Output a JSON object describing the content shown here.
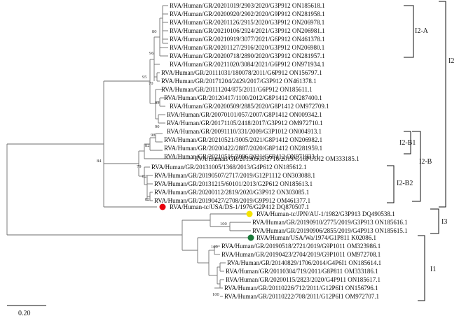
{
  "tree": {
    "taxa": [
      "RVA/Human/GR/20201019/2903/2020/G3P912 ON185618.1",
      "RVA/Human/GR/20200920/2902/2020/G9P912 ON281958.1",
      "RVA/Human/GR/20201126/2915/2020/G3P912 ON206978.1",
      "RVA/Human/GR/20210106/2924/2021/G3P912 ON206981.1",
      "RVA/Human/GR/20210919/3077/2021/G6P912 ON461378.1",
      "RVA/Human/GR/20201127/2916/2020/G3P912 ON206980.1",
      "RVA/Human/GR/20200718/2890/2020/G3P912 ON281957.1",
      "RVA/Human/GR/20211020/3084/2021/G6P912 ON971934.1",
      "RVA/Human/GR/20111031/180078/2011/G6P912 ON156797.1",
      "RVA/Human/GR/20171204/2429/2017/G3P912 ON461378.1",
      "RVA/Human/GR/20111204/875/2011/G6P912 ON185611.1",
      "RVA/Human/GR/20120417/1100/2012/G8P1412 ON287400.1",
      "RVA/Human/GR/20200509/2885/2020/G8P1412 OM972709.1",
      "RVA/Human/GR/20070101/057/2007/G8P1412 ON009342.1",
      "RVA/Human/GR/20171105/2418/2017/G3P912 OM972710.1",
      "RVA/Human/GR/20091110/331/2009/G3P1012 ON004913.1",
      "RVA/Human/GR/20210521/3005/2021/G8P1412 ON206982.1",
      "RVA/Human/GR/20200422/2887/2020/G8P1412 ON281959.1",
      "RVA/Human/GR/20210516/3096/2021/G6P412 ON971933.1",
      "RVA/Human/GR/20190505/2716/2019/G10PUDI2 OM333185.1",
      "RVA/Human/GR/20131005/1368/2013/G4P612 ON185612.1",
      "RVA/Human/GR/20190507/2717/2019/G12P1112 ON303088.1",
      "RVA/Human/GR/20131215/60101/2013/G2P612 ON185613.1",
      "RVA/Human/GR/20200112/2819/2020/G3P912 ON303085.1",
      "RVA/Human/GR/20190427/2708/2019/G9P912 OM461377.1",
      "RVA/Human-tc/USA/DS-1/1976/G2P412 DQ870507.1",
      "RVA/Human-tc/JPN/AU-1/1982/G3P913 DQ490538.1",
      "RVA/Human/GR/20190910/2775/2019/G3P913 ON185616.1",
      "RVA/Human/GR/20190906/2855/2019/G4P913 ON185615.1",
      "RVA/Human/USA/Wa/1974/G1P811 K02086.1",
      "RVA/Human/GR/20190518/2721/2019/G9P1011 OM323986.1",
      "RVA/Human/GR/20190423/2704/2019/G9P1011 OM972708.1",
      "RVA/Human/GR/20140829/1706/2014/G4P6I1 ON185614.1",
      "RVA/Human/GR/20110304/719/2011/G8P811 OM333186.1",
      "RVA/Human/GR/20200115/2823/2020/G4P911 ON185617.1",
      "RVA/Human/GR/20110226/712/2011/G12P6I1 ON156796.1",
      "RVA/Human/GR/20110222/708/2011/G12P6I1 OM972707.1"
    ],
    "bootstrap": [
      "80",
      "96",
      "95",
      "70",
      "92",
      "90",
      "98",
      "82",
      "84",
      "79",
      "82",
      "82",
      "100",
      "100",
      "100"
    ],
    "clades": [
      "I2-A",
      "I2-B1",
      "I2-B",
      "I2-B2",
      "I2",
      "I3",
      "I1"
    ],
    "scale_label": "0.20",
    "reference_marker_colors": [
      "#e8000b",
      "#f5e400",
      "#1a7a3a"
    ]
  }
}
